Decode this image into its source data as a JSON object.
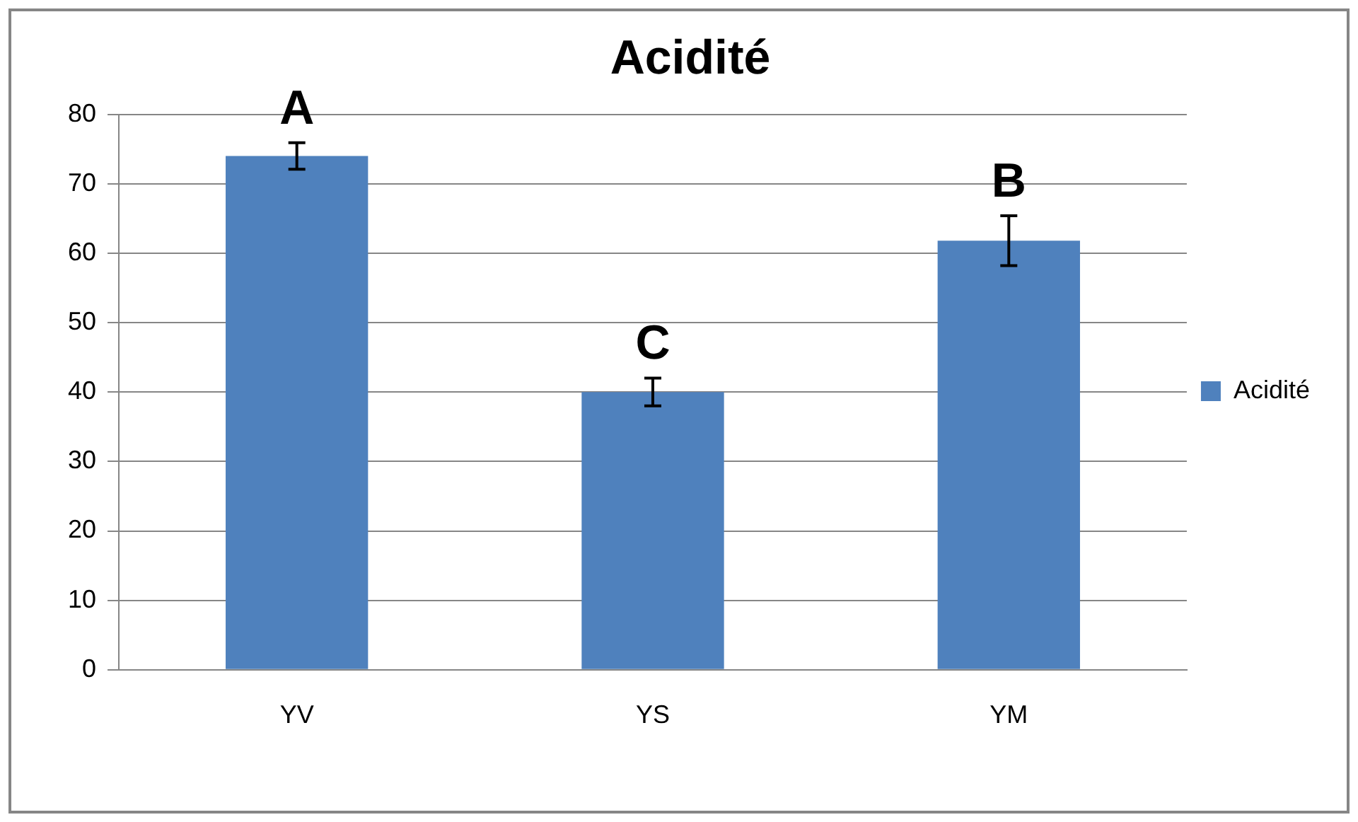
{
  "chart_data": {
    "type": "bar",
    "title": "Acidité",
    "categories": [
      "YV",
      "YS",
      "YM"
    ],
    "series": [
      {
        "name": "Acidité",
        "color": "#4f81bd",
        "values": [
          74,
          40,
          61.8
        ],
        "errors": [
          1.9,
          2,
          3.6
        ]
      }
    ],
    "ylim": [
      0,
      80
    ],
    "yticks": [
      0,
      10,
      20,
      30,
      40,
      50,
      60,
      70,
      80
    ],
    "grid": "y",
    "legend": "right",
    "annotations": [
      {
        "text": "A",
        "x": "YV",
        "y": 75.9
      },
      {
        "text": "C",
        "x": "YS",
        "y": 42
      },
      {
        "text": "B",
        "x": "YM",
        "y": 65.4
      }
    ]
  }
}
